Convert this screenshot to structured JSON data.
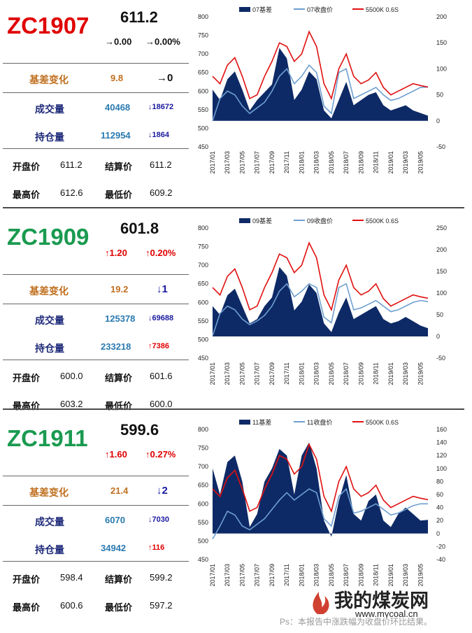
{
  "panels": [
    {
      "code": "ZC1907",
      "code_color": "#e00000",
      "price": "611.2",
      "change": "→0.00",
      "change_pct": "→0.00%",
      "change_color": "#111111",
      "basis_label": "基差变化",
      "basis_value": "9.8",
      "basis_change": "→0",
      "basis_change_color": "#111111",
      "volume_label": "成交量",
      "volume": "40468",
      "volume_change": "↓18672",
      "volume_change_color": "#1a1aa0",
      "oi_label": "持仓量",
      "oi": "112954",
      "oi_change": "↓1864",
      "oi_change_color": "#1a1aa0",
      "open_label": "开盘价",
      "open": "611.2",
      "settle_label": "结算价",
      "settle": "611.2",
      "high_label": "最高价",
      "high": "612.6",
      "low_label": "最低价",
      "low": "609.2",
      "chart_data": {
        "type": "area",
        "legend": [
          "07基差",
          "07收盘价",
          "5500K 0.6S"
        ],
        "y_left_ticks": [
          450,
          500,
          550,
          600,
          650,
          700,
          750,
          800
        ],
        "y_right_ticks": [
          -50,
          0,
          50,
          100,
          150,
          200
        ],
        "ylim_left": [
          450,
          800
        ],
        "ylim_right": [
          -50,
          200
        ],
        "x_ticks": [
          "2017/01",
          "2017/03",
          "2017/05",
          "2017/07",
          "2017/09",
          "2017/11",
          "2018/01",
          "2018/03",
          "2018/05",
          "2018/07",
          "2018/09",
          "2018/11",
          "2019/01",
          "2019/03",
          "2019/05"
        ],
        "x": [
          "2017/01",
          "2017/02",
          "2017/03",
          "2017/04",
          "2017/05",
          "2017/06",
          "2017/07",
          "2017/08",
          "2017/09",
          "2017/10",
          "2017/11",
          "2017/12",
          "2018/01",
          "2018/02",
          "2018/03",
          "2018/04",
          "2018/05",
          "2018/06",
          "2018/07",
          "2018/08",
          "2018/09",
          "2018/10",
          "2018/11",
          "2018/12",
          "2019/01",
          "2019/02",
          "2019/03",
          "2019/04",
          "2019/05",
          "2019/06"
        ],
        "series": [
          {
            "name": "07基差",
            "axis": "right",
            "values": [
              60,
              40,
              80,
              95,
              60,
              20,
              40,
              55,
              70,
              140,
              120,
              40,
              60,
              95,
              80,
              20,
              5,
              40,
              75,
              30,
              40,
              50,
              55,
              30,
              20,
              25,
              30,
              20,
              15,
              10
            ]
          },
          {
            "name": "07收盘价",
            "axis": "left",
            "values": [
              520,
              580,
              600,
              590,
              560,
              540,
              555,
              570,
              600,
              640,
              660,
              620,
              640,
              670,
              650,
              560,
              540,
              650,
              660,
              580,
              590,
              600,
              610,
              590,
              575,
              580,
              590,
              600,
              610,
              611
            ]
          },
          {
            "name": "5500K 0.6S",
            "axis": "left",
            "values": [
              640,
              620,
              670,
              690,
              640,
              580,
              590,
              640,
              680,
              730,
              720,
              680,
              700,
              760,
              720,
              620,
              580,
              660,
              700,
              640,
              620,
              630,
              650,
              610,
              590,
              600,
              610,
              620,
              615,
              611
            ]
          }
        ]
      }
    },
    {
      "code": "ZC1909",
      "code_color": "#1a9a50",
      "price": "601.8",
      "change": "↑1.20",
      "change_pct": "↑0.20%",
      "change_color": "#e00000",
      "basis_label": "基差变化",
      "basis_value": "19.2",
      "basis_change": "↓1",
      "basis_change_color": "#1a1aa0",
      "volume_label": "成交量",
      "volume": "125378",
      "volume_change": "↓69688",
      "volume_change_color": "#1a1aa0",
      "oi_label": "持仓量",
      "oi": "233218",
      "oi_change": "↑7386",
      "oi_change_color": "#e00000",
      "open_label": "开盘价",
      "open": "600.0",
      "settle_label": "结算价",
      "settle": "601.6",
      "high_label": "最高价",
      "high": "603.2",
      "low_label": "最低价",
      "low": "600.0",
      "chart_data": {
        "type": "area",
        "legend": [
          "09基差",
          "09收盘价",
          "5500K 0.6S"
        ],
        "y_left_ticks": [
          450,
          500,
          550,
          600,
          650,
          700,
          750,
          800
        ],
        "y_right_ticks": [
          -50,
          0,
          50,
          100,
          150,
          200,
          250
        ],
        "ylim_left": [
          450,
          800
        ],
        "ylim_right": [
          -50,
          250
        ],
        "x_ticks": [
          "2017/01",
          "2017/03",
          "2017/05",
          "2017/07",
          "2017/09",
          "2017/11",
          "2018/01",
          "2018/03",
          "2018/05",
          "2018/07",
          "2018/09",
          "2018/11",
          "2019/01",
          "2019/03",
          "2019/05"
        ],
        "x": [
          "2017/01",
          "2017/02",
          "2017/03",
          "2017/04",
          "2017/05",
          "2017/06",
          "2017/07",
          "2017/08",
          "2017/09",
          "2017/10",
          "2017/11",
          "2017/12",
          "2018/01",
          "2018/02",
          "2018/03",
          "2018/04",
          "2018/05",
          "2018/06",
          "2018/07",
          "2018/08",
          "2018/09",
          "2018/10",
          "2018/11",
          "2018/12",
          "2019/01",
          "2019/02",
          "2019/03",
          "2019/04",
          "2019/05",
          "2019/06"
        ],
        "series": [
          {
            "name": "09基差",
            "axis": "right",
            "values": [
              70,
              50,
              95,
              110,
              70,
              30,
              40,
              70,
              90,
              160,
              140,
              60,
              80,
              120,
              100,
              30,
              10,
              55,
              90,
              40,
              50,
              60,
              70,
              40,
              30,
              35,
              45,
              35,
              25,
              19
            ]
          },
          {
            "name": "09收盘价",
            "axis": "left",
            "values": [
              510,
              570,
              590,
              580,
              555,
              540,
              550,
              565,
              590,
              630,
              650,
              615,
              630,
              650,
              640,
              560,
              545,
              640,
              650,
              580,
              585,
              595,
              605,
              590,
              575,
              580,
              590,
              600,
              605,
              602
            ]
          },
          {
            "name": "5500K 0.6S",
            "axis": "left",
            "values": [
              640,
              620,
              670,
              690,
              640,
              580,
              590,
              640,
              680,
              730,
              720,
              680,
              700,
              760,
              720,
              620,
              580,
              660,
              700,
              640,
              620,
              630,
              650,
              610,
              590,
              600,
              610,
              620,
              615,
              611
            ]
          }
        ]
      }
    },
    {
      "code": "ZC1911",
      "code_color": "#1a9a50",
      "price": "599.6",
      "change": "↑1.60",
      "change_pct": "↑0.27%",
      "change_color": "#e00000",
      "basis_label": "基差变化",
      "basis_value": "21.4",
      "basis_change": "↓2",
      "basis_change_color": "#1a1aa0",
      "volume_label": "成交量",
      "volume": "6070",
      "volume_change": "↓7030",
      "volume_change_color": "#1a1aa0",
      "oi_label": "持仓量",
      "oi": "34942",
      "oi_change": "↑116",
      "oi_change_color": "#e00000",
      "open_label": "开盘价",
      "open": "598.4",
      "settle_label": "结算价",
      "settle": "599.2",
      "high_label": "最高价",
      "high": "600.6",
      "low_label": "最低价",
      "low": "597.2",
      "chart_data": {
        "type": "area",
        "legend": [
          "11基差",
          "11收盘价",
          "5500K 0.6S"
        ],
        "y_left_ticks": [
          450,
          500,
          550,
          600,
          650,
          700,
          750,
          800
        ],
        "y_right_ticks": [
          -40,
          -20,
          0,
          20,
          40,
          60,
          80,
          100,
          120,
          140,
          160
        ],
        "ylim_left": [
          450,
          800
        ],
        "ylim_right": [
          -40,
          160
        ],
        "x_ticks": [
          "2017/01",
          "2017/03",
          "2017/05",
          "2017/07",
          "2017/09",
          "2017/11",
          "2018/01",
          "2018/03",
          "2018/05",
          "2018/07",
          "2018/09",
          "2018/11",
          "2019/01",
          "2019/03",
          "2019/05"
        ],
        "x": [
          "2017/01",
          "2017/02",
          "2017/03",
          "2017/04",
          "2017/05",
          "2017/06",
          "2017/07",
          "2017/08",
          "2017/09",
          "2017/10",
          "2017/11",
          "2017/12",
          "2018/01",
          "2018/02",
          "2018/03",
          "2018/04",
          "2018/05",
          "2018/06",
          "2018/07",
          "2018/08",
          "2018/09",
          "2018/10",
          "2018/11",
          "2018/12",
          "2019/01",
          "2019/02",
          "2019/03",
          "2019/04",
          "2019/05",
          "2019/06"
        ],
        "series": [
          {
            "name": "11基差",
            "axis": "right",
            "values": [
              100,
              60,
              110,
              120,
              80,
              10,
              30,
              80,
              100,
              130,
              120,
              60,
              120,
              140,
              100,
              20,
              -5,
              50,
              90,
              30,
              20,
              50,
              60,
              20,
              10,
              30,
              40,
              30,
              20,
              21
            ]
          },
          {
            "name": "11收盘价",
            "axis": "left",
            "values": [
              505,
              540,
              580,
              570,
              540,
              530,
              545,
              560,
              585,
              610,
              630,
              610,
              625,
              640,
              630,
              560,
              540,
              620,
              640,
              575,
              580,
              590,
              600,
              585,
              570,
              575,
              585,
              595,
              600,
              600
            ]
          },
          {
            "name": "5500K 0.6S",
            "axis": "left",
            "values": [
              640,
              620,
              670,
              690,
              640,
              580,
              590,
              640,
              680,
              730,
              720,
              680,
              700,
              760,
              720,
              620,
              580,
              660,
              700,
              640,
              620,
              630,
              650,
              610,
              590,
              600,
              610,
              620,
              615,
              611
            ]
          }
        ]
      }
    }
  ],
  "footer": {
    "note": "Ps：本报告中涨跌幅为收盘价环比结果。",
    "logo_text": "我的煤炭网",
    "logo_url": "www.mycoal.cn"
  }
}
